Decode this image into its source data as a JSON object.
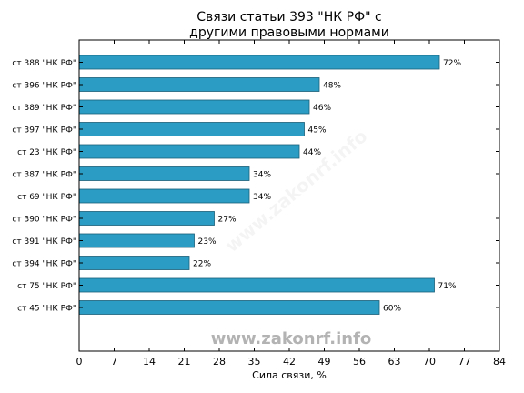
{
  "chart_data": {
    "type": "bar",
    "orientation": "horizontal",
    "title_lines": [
      "Связи статьи 393 \"НК РФ\" с",
      "другими правовыми нормами"
    ],
    "xlabel": "Сила связи, %",
    "ylabel": "",
    "xlim": [
      0,
      84
    ],
    "xticks": [
      "0",
      "7",
      "14",
      "21",
      "28",
      "35",
      "42",
      "49",
      "56",
      "63",
      "70",
      "77",
      "84"
    ],
    "categories": [
      "ст 388 \"НК РФ\"",
      "ст 396 \"НК РФ\"",
      "ст 389 \"НК РФ\"",
      "ст 397 \"НК РФ\"",
      "ст 23 \"НК РФ\"",
      "ст 387 \"НК РФ\"",
      "ст 69 \"НК РФ\"",
      "ст 390 \"НК РФ\"",
      "ст 391 \"НК РФ\"",
      "ст 394 \"НК РФ\"",
      "ст 75 \"НК РФ\"",
      "ст 45 \"НК РФ\""
    ],
    "values": [
      72,
      48,
      46,
      45,
      44,
      34,
      34,
      27,
      23,
      22,
      71,
      60
    ],
    "value_labels": [
      "72%",
      "48%",
      "46%",
      "45%",
      "44%",
      "34%",
      "34%",
      "27%",
      "23%",
      "22%",
      "71%",
      "60%"
    ],
    "bar_color": "#2b9cc4",
    "bar_edge_color": "#1a5f78",
    "grid": false
  },
  "watermark": "www.zakonrf.info"
}
